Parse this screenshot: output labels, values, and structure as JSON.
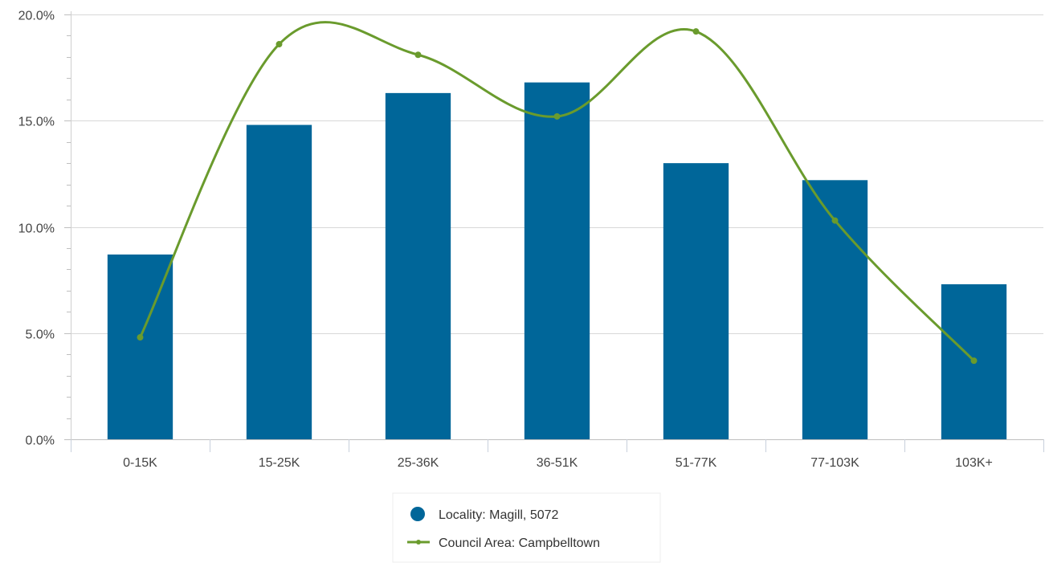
{
  "chart_data": {
    "type": "bar",
    "title": "",
    "xlabel": "",
    "ylabel": "",
    "categories": [
      "0-15K",
      "15-25K",
      "25-36K",
      "36-51K",
      "51-77K",
      "77-103K",
      "103K+"
    ],
    "ylim": [
      0,
      20
    ],
    "yticks": [
      0,
      5,
      10,
      15,
      20
    ],
    "ytick_labels": [
      "0.0%",
      "5.0%",
      "10.0%",
      "15.0%",
      "20.0%"
    ],
    "grid": true,
    "legend_position": "bottom-center",
    "series": [
      {
        "name": "Locality: Magill, 5072",
        "type": "bar",
        "color": "#006699",
        "values": [
          8.7,
          14.8,
          16.3,
          16.8,
          13.0,
          12.2,
          7.3
        ]
      },
      {
        "name": "Council Area: Campbelltown",
        "type": "line",
        "smooth": true,
        "color": "#6a9b2d",
        "values": [
          4.8,
          18.6,
          18.1,
          15.2,
          19.2,
          10.3,
          3.7
        ]
      }
    ]
  }
}
